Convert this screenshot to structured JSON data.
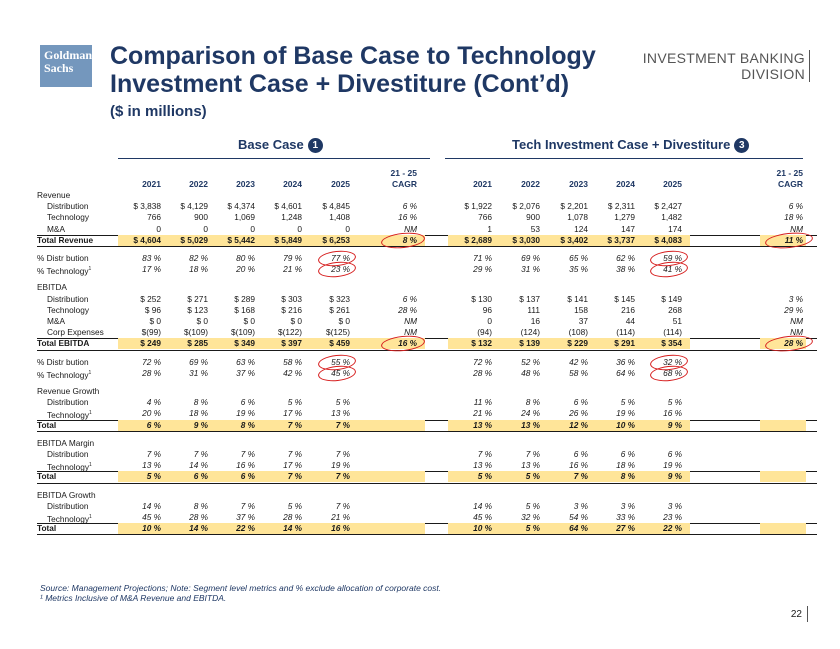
{
  "header": {
    "logo_text": "Goldman Sachs",
    "title": "Comparison of Base Case to Technology Investment Case + Divestiture (Cont’d)",
    "subtitle": "($ in millions)",
    "division_line1": "INVESTMENT BANKING",
    "division_line2": "DIVISION"
  },
  "groups": {
    "base": {
      "label": "Base Case",
      "badge": "1"
    },
    "tech": {
      "label": "Tech Investment Case + Divestiture",
      "badge": "3"
    }
  },
  "columns": {
    "base_years": [
      "2021",
      "2022",
      "2023",
      "2024",
      "2025"
    ],
    "tech_years": [
      "2021",
      "2022",
      "2023",
      "2024",
      "2025"
    ],
    "cagr_line1": "21 - 25",
    "cagr_line2": "CAGR"
  },
  "rows": [
    {
      "label": "Revenue",
      "style": "section"
    },
    {
      "label": "Distribution",
      "style": "item",
      "base": [
        "$ 3,838",
        "$ 4,129",
        "$ 4,374",
        "$ 4,601",
        "$ 4,845"
      ],
      "base_cagr": "6 %",
      "tech": [
        "$ 1,922",
        "$ 2,076",
        "$ 2,201",
        "$ 2,311",
        "$ 2,427"
      ],
      "tech_cagr": "6 %"
    },
    {
      "label": "Technology",
      "style": "item",
      "base": [
        "766",
        "900",
        "1,069",
        "1,248",
        "1,408"
      ],
      "base_cagr": "16 %",
      "tech": [
        "766",
        "900",
        "1,078",
        "1,279",
        "1,482"
      ],
      "tech_cagr": "18 %"
    },
    {
      "label": "M&A",
      "style": "item",
      "base": [
        "0",
        "0",
        "0",
        "0",
        "0"
      ],
      "base_cagr": "NM",
      "tech": [
        "1",
        "53",
        "124",
        "147",
        "174"
      ],
      "tech_cagr": "NM"
    },
    {
      "label": "Total Revenue",
      "style": "total",
      "base": [
        "$ 4,604",
        "$ 5,029",
        "$ 5,442",
        "$ 5,849",
        "$ 6,253"
      ],
      "base_cagr": "8 %",
      "tech": [
        "$ 2,689",
        "$ 3,030",
        "$ 3,402",
        "$ 3,737",
        "$ 4,083"
      ],
      "tech_cagr": "11 %"
    },
    {
      "label": "% Distr bution",
      "style": "pct-first",
      "base": [
        "83 %",
        "82 %",
        "80 %",
        "79 %",
        "77 %"
      ],
      "tech": [
        "71 %",
        "69 %",
        "65 %",
        "62 %",
        "59 %"
      ]
    },
    {
      "label": "% Technology",
      "sup": "1",
      "style": "pct",
      "base": [
        "17 %",
        "18 %",
        "20 %",
        "21 %",
        "23 %"
      ],
      "tech": [
        "29 %",
        "31 %",
        "35 %",
        "38 %",
        "41 %"
      ]
    },
    {
      "label": "EBITDA",
      "style": "section-gap"
    },
    {
      "label": "Distribution",
      "style": "item",
      "base": [
        "$ 252",
        "$ 271",
        "$ 289",
        "$ 303",
        "$ 323"
      ],
      "base_cagr": "6 %",
      "tech": [
        "$ 130",
        "$ 137",
        "$ 141",
        "$ 145",
        "$ 149"
      ],
      "tech_cagr": "3 %"
    },
    {
      "label": "Technology",
      "style": "item",
      "base": [
        "$ 96",
        "$ 123",
        "$ 168",
        "$ 216",
        "$ 261"
      ],
      "base_cagr": "28 %",
      "tech": [
        "96",
        "111",
        "158",
        "216",
        "268"
      ],
      "tech_cagr": "29 %"
    },
    {
      "label": "M&A",
      "style": "item",
      "base": [
        "$ 0",
        "$ 0",
        "$ 0",
        "$ 0",
        "$ 0"
      ],
      "base_cagr": "NM",
      "tech": [
        "0",
        "16",
        "37",
        "44",
        "51"
      ],
      "tech_cagr": "NM"
    },
    {
      "label": "Corp Expenses",
      "style": "item",
      "base": [
        "$(99)",
        "$(109)",
        "$(109)",
        "$(122)",
        "$(125)"
      ],
      "base_cagr": "NM",
      "tech": [
        "(94)",
        "(124)",
        "(108)",
        "(114)",
        "(114)"
      ],
      "tech_cagr": "NM"
    },
    {
      "label": "Total EBITDA",
      "style": "total",
      "base": [
        "$ 249",
        "$ 285",
        "$ 349",
        "$ 397",
        "$ 459"
      ],
      "base_cagr": "16 %",
      "tech": [
        "$ 132",
        "$ 139",
        "$ 229",
        "$ 291",
        "$ 354"
      ],
      "tech_cagr": "28 %"
    },
    {
      "label": "% Distr bution",
      "style": "pct-first",
      "base": [
        "72 %",
        "69 %",
        "63 %",
        "58 %",
        "55 %"
      ],
      "tech": [
        "72 %",
        "52 %",
        "42 %",
        "36 %",
        "32 %"
      ]
    },
    {
      "label": "% Technology",
      "sup": "1",
      "style": "pct",
      "base": [
        "28 %",
        "31 %",
        "37 %",
        "42 %",
        "45 %"
      ],
      "tech": [
        "28 %",
        "48 %",
        "58 %",
        "64 %",
        "68 %"
      ]
    },
    {
      "label": "Revenue Growth",
      "style": "section-gap"
    },
    {
      "label": "Distribution",
      "style": "pctitem",
      "base": [
        "4 %",
        "8 %",
        "6 %",
        "5 %",
        "5 %"
      ],
      "tech": [
        "11 %",
        "8 %",
        "6 %",
        "5 %",
        "5 %"
      ]
    },
    {
      "label": "Technology",
      "sup": "1",
      "style": "pctitem",
      "base": [
        "20 %",
        "18 %",
        "19 %",
        "17 %",
        "13 %"
      ],
      "tech": [
        "21 %",
        "24 %",
        "26 %",
        "19 %",
        "16 %"
      ]
    },
    {
      "label": "Total",
      "style": "total-pct",
      "base": [
        "6 %",
        "9 %",
        "8 %",
        "7 %",
        "7 %"
      ],
      "tech": [
        "13 %",
        "13 %",
        "12 %",
        "10 %",
        "9 %"
      ]
    },
    {
      "label": "EBITDA Margin",
      "style": "section-gap"
    },
    {
      "label": "Distribution",
      "style": "pctitem",
      "base": [
        "7 %",
        "7 %",
        "7 %",
        "7 %",
        "7 %"
      ],
      "tech": [
        "7 %",
        "7 %",
        "6 %",
        "6 %",
        "6 %"
      ]
    },
    {
      "label": "Technology",
      "sup": "1",
      "style": "pctitem",
      "base": [
        "13 %",
        "14 %",
        "16 %",
        "17 %",
        "19 %"
      ],
      "tech": [
        "13 %",
        "13 %",
        "16 %",
        "18 %",
        "19 %"
      ]
    },
    {
      "label": "Total",
      "style": "total-pct",
      "base": [
        "5 %",
        "6 %",
        "6 %",
        "7 %",
        "7 %"
      ],
      "tech": [
        "5 %",
        "5 %",
        "7 %",
        "8 %",
        "9 %"
      ]
    },
    {
      "label": "EBITDA Growth",
      "style": "section-gap"
    },
    {
      "label": "Distribution",
      "style": "pctitem",
      "base": [
        "14 %",
        "8 %",
        "7 %",
        "5 %",
        "7 %"
      ],
      "tech": [
        "14 %",
        "5 %",
        "3 %",
        "3 %",
        "3 %"
      ]
    },
    {
      "label": "Technology",
      "sup": "1",
      "style": "pctitem",
      "base": [
        "45 %",
        "28 %",
        "37 %",
        "28 %",
        "21 %"
      ],
      "tech": [
        "45 %",
        "32 %",
        "54 %",
        "33 %",
        "23 %"
      ]
    },
    {
      "label": "Total",
      "style": "total-pct",
      "base": [
        "10 %",
        "14 %",
        "22 %",
        "14 %",
        "16 %"
      ],
      "tech": [
        "10 %",
        "5 %",
        "64 %",
        "27 %",
        "22 %"
      ]
    }
  ],
  "footnotes": {
    "source": "Source: Management Projections; Note: Segment level metrics and % exclude allocation of corporate cost.",
    "note1": "¹ Metrics Inclusive of M&A Revenue and EBITDA."
  },
  "page_number": "22",
  "colors": {
    "navy": "#1f3864",
    "highlight": "#ffe599",
    "circle": "#d61d1d",
    "logo": "#7497bd"
  }
}
